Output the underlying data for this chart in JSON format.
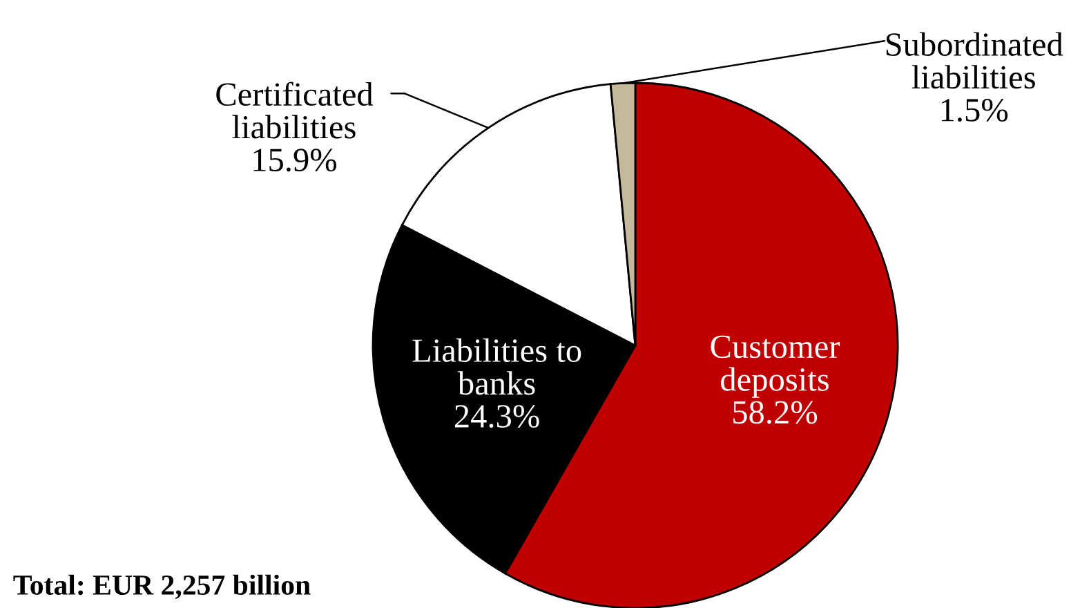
{
  "chart_data": {
    "type": "pie",
    "categories": [
      "Customer deposits",
      "Liabilities to banks",
      "Certificated liabilities",
      "Subordinated liabilities"
    ],
    "values": [
      58.2,
      24.3,
      15.9,
      1.5
    ],
    "colors": [
      "#c00000",
      "#000000",
      "#ffffff",
      "#c4b99a"
    ],
    "value_labels": [
      "58.2%",
      "24.3%",
      "15.9%",
      "1.5%"
    ],
    "annotations": [
      "Total: EUR 2,257 billion"
    ]
  }
}
